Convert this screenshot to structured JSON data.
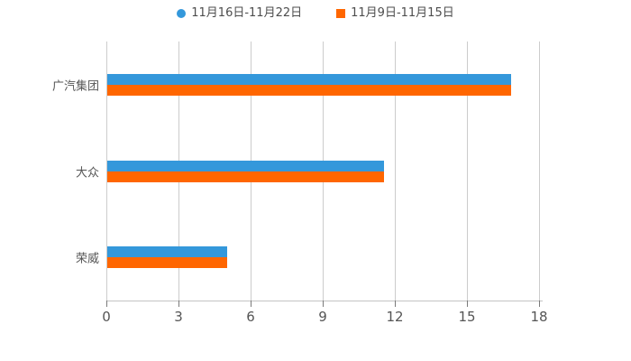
{
  "chart_data": {
    "type": "bar",
    "orientation": "horizontal",
    "title": "",
    "xlabel": "",
    "ylabel": "",
    "categories": [
      "广汽集团",
      "大众",
      "荣威"
    ],
    "series": [
      {
        "name": "11月16日-11月22日",
        "color": "#3498db",
        "marker": "circle",
        "values": [
          16.8,
          11.5,
          5.0
        ]
      },
      {
        "name": "11月9日-11月15日",
        "color": "#ff6600",
        "marker": "square",
        "values": [
          16.8,
          11.5,
          5.0
        ]
      }
    ],
    "xlim": [
      0,
      18
    ],
    "xticks": [
      "0",
      "3",
      "6",
      "9",
      "12",
      "15",
      "18"
    ],
    "xtick_values": [
      0,
      3,
      6,
      9,
      12,
      15,
      18
    ],
    "grid": true,
    "legend_position": "top",
    "colors": {
      "grid": "#cccccc",
      "axis": "#c4c4c4",
      "tick": "#7a7a7a",
      "text": "#555555",
      "legend_text": "#4d4d4d",
      "background": "#ffffff"
    }
  }
}
